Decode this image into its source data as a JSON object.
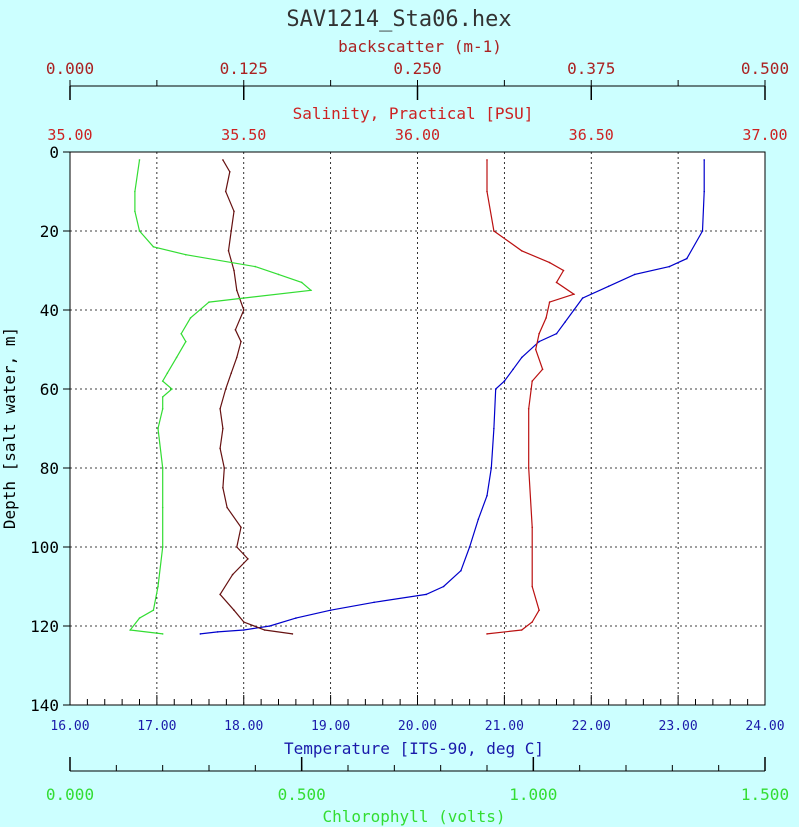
{
  "chart_data": {
    "type": "line",
    "title": "SAV1214_Sta06.hex",
    "y_axis": {
      "label": "Depth [salt water, m]",
      "range": [
        0,
        140
      ],
      "ticks": [
        "0",
        "20",
        "40",
        "60",
        "80",
        "100",
        "120",
        "140"
      ],
      "inverted": true
    },
    "axes": {
      "backscatter": {
        "label": "backscatter (m-1)",
        "range": [
          0.0,
          0.5
        ],
        "ticks": [
          "0.000",
          "0.125",
          "0.250",
          "0.375",
          "0.500"
        ],
        "color": "#aa2222"
      },
      "salinity": {
        "label": "Salinity, Practical [PSU]",
        "range": [
          35.0,
          37.0
        ],
        "ticks": [
          "35.00",
          "35.50",
          "36.00",
          "36.50",
          "37.00"
        ],
        "color": "#cc2222"
      },
      "temperature": {
        "label": "Temperature [ITS-90, deg C]",
        "range": [
          16.0,
          24.0
        ],
        "ticks": [
          "16.00",
          "17.00",
          "18.00",
          "19.00",
          "20.00",
          "21.00",
          "22.00",
          "23.00",
          "24.00"
        ],
        "color": "#1a1aaa"
      },
      "chlorophyll": {
        "label": "Chlorophyll (volts)",
        "range": [
          0.0,
          1.5
        ],
        "ticks": [
          "0.000",
          "0.500",
          "1.000",
          "1.500"
        ],
        "color": "#33dd33"
      }
    },
    "grid": true,
    "series": [
      {
        "axis": "temperature",
        "color": "#0000cc",
        "points": [
          [
            23.3,
            2
          ],
          [
            23.3,
            10
          ],
          [
            23.28,
            20
          ],
          [
            23.1,
            27
          ],
          [
            22.9,
            29
          ],
          [
            22.5,
            31
          ],
          [
            22.2,
            34
          ],
          [
            21.9,
            37
          ],
          [
            21.8,
            40
          ],
          [
            21.7,
            43
          ],
          [
            21.6,
            46
          ],
          [
            21.4,
            48
          ],
          [
            21.2,
            52
          ],
          [
            21.1,
            55
          ],
          [
            21.0,
            58
          ],
          [
            20.9,
            60
          ],
          [
            20.88,
            70
          ],
          [
            20.85,
            80
          ],
          [
            20.8,
            87
          ],
          [
            20.7,
            93
          ],
          [
            20.6,
            100
          ],
          [
            20.5,
            106
          ],
          [
            20.3,
            110
          ],
          [
            20.1,
            112
          ],
          [
            19.5,
            114
          ],
          [
            19.0,
            116
          ],
          [
            18.6,
            118
          ],
          [
            18.3,
            120
          ],
          [
            18.0,
            121
          ],
          [
            17.7,
            121.5
          ],
          [
            17.5,
            122
          ]
        ]
      },
      {
        "axis": "salinity",
        "color": "#bb1111",
        "points": [
          [
            36.2,
            2
          ],
          [
            36.2,
            10
          ],
          [
            36.22,
            20
          ],
          [
            36.3,
            25
          ],
          [
            36.38,
            28
          ],
          [
            36.42,
            30
          ],
          [
            36.4,
            33
          ],
          [
            36.45,
            36
          ],
          [
            36.38,
            38
          ],
          [
            36.37,
            42
          ],
          [
            36.35,
            46
          ],
          [
            36.34,
            50
          ],
          [
            36.36,
            55
          ],
          [
            36.33,
            58
          ],
          [
            36.32,
            65
          ],
          [
            36.32,
            80
          ],
          [
            36.33,
            95
          ],
          [
            36.33,
            110
          ],
          [
            36.35,
            116
          ],
          [
            36.33,
            119
          ],
          [
            36.3,
            121
          ],
          [
            36.2,
            122
          ]
        ]
      },
      {
        "axis": "backscatter",
        "color": "#661111",
        "points": [
          [
            0.11,
            2
          ],
          [
            0.115,
            5
          ],
          [
            0.112,
            10
          ],
          [
            0.118,
            15
          ],
          [
            0.116,
            20
          ],
          [
            0.114,
            25
          ],
          [
            0.118,
            30
          ],
          [
            0.12,
            35
          ],
          [
            0.125,
            40
          ],
          [
            0.119,
            45
          ],
          [
            0.123,
            48
          ],
          [
            0.12,
            52
          ],
          [
            0.116,
            56
          ],
          [
            0.112,
            60
          ],
          [
            0.108,
            65
          ],
          [
            0.11,
            70
          ],
          [
            0.108,
            75
          ],
          [
            0.111,
            80
          ],
          [
            0.11,
            85
          ],
          [
            0.113,
            90
          ],
          [
            0.123,
            95
          ],
          [
            0.12,
            100
          ],
          [
            0.128,
            103
          ],
          [
            0.117,
            107
          ],
          [
            0.108,
            112
          ],
          [
            0.118,
            116
          ],
          [
            0.125,
            119
          ],
          [
            0.14,
            121
          ],
          [
            0.16,
            122
          ]
        ]
      },
      {
        "axis": "chlorophyll",
        "color": "#33dd33",
        "points": [
          [
            0.15,
            2
          ],
          [
            0.14,
            10
          ],
          [
            0.14,
            15
          ],
          [
            0.15,
            20
          ],
          [
            0.18,
            24
          ],
          [
            0.25,
            26
          ],
          [
            0.4,
            29
          ],
          [
            0.45,
            31
          ],
          [
            0.5,
            33
          ],
          [
            0.52,
            35
          ],
          [
            0.3,
            38
          ],
          [
            0.26,
            42
          ],
          [
            0.24,
            46
          ],
          [
            0.25,
            48
          ],
          [
            0.23,
            52
          ],
          [
            0.21,
            56
          ],
          [
            0.2,
            58
          ],
          [
            0.22,
            60
          ],
          [
            0.2,
            62
          ],
          [
            0.2,
            65
          ],
          [
            0.19,
            70
          ],
          [
            0.2,
            80
          ],
          [
            0.2,
            90
          ],
          [
            0.2,
            100
          ],
          [
            0.19,
            110
          ],
          [
            0.18,
            116
          ],
          [
            0.15,
            118
          ],
          [
            0.13,
            121
          ],
          [
            0.2,
            122
          ]
        ]
      }
    ]
  }
}
